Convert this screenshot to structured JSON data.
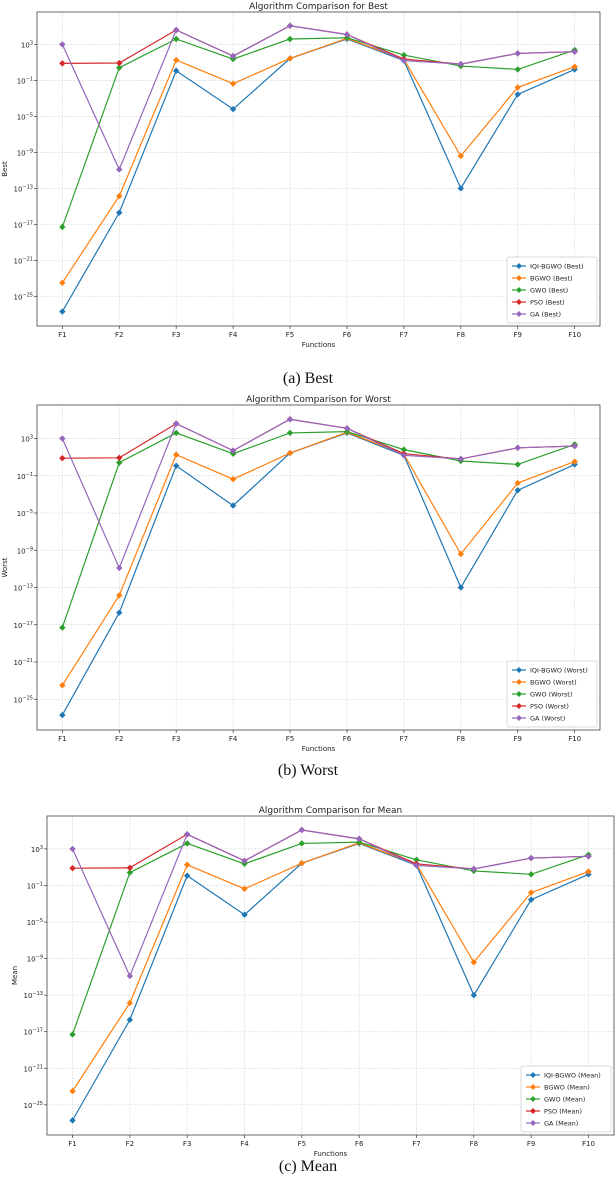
{
  "chart_data": [
    {
      "type": "line",
      "title": "Algorithm Comparison for Best",
      "caption": "(a)  Best",
      "xlabel": "Functions",
      "ylabel": "Best",
      "yscale": "log",
      "value_format": "log10",
      "categories": [
        "F1",
        "F2",
        "F3",
        "F4",
        "F5",
        "F6",
        "F7",
        "F8",
        "F9",
        "F10"
      ],
      "yticks": [
        "10^3",
        "10^-1",
        "10^-5",
        "10^-9",
        "10^-13",
        "10^-17",
        "10^-21",
        "10^-25"
      ],
      "ylim_log10": [
        -28.3,
        6.6
      ],
      "grid": true,
      "legend": "bottom-right",
      "series": [
        {
          "name": "IQI-BGWO (Best)",
          "color": "#1f77b4",
          "values": [
            -26.7,
            -15.7,
            0.07,
            -4.2,
            1.44,
            3.6,
            1.2,
            -13,
            -2.56,
            0.22
          ]
        },
        {
          "name": "BGWO (Best)",
          "color": "#ff7f0e",
          "values": [
            -23.5,
            -13.85,
            1.26,
            -1.37,
            1.44,
            3.67,
            1.33,
            -9.4,
            -1.78,
            0.52
          ]
        },
        {
          "name": "GWO (Best)",
          "color": "#2ca02c",
          "values": [
            -17.3,
            0.41,
            3.6,
            1.37,
            3.6,
            3.74,
            1.81,
            0.59,
            0.22,
            2.37
          ]
        },
        {
          "name": "PSO (Best)",
          "color": "#d62728",
          "values": [
            0.89,
            0.93,
            4.6,
            1.7,
            5.07,
            4.1,
            1.37,
            0.81,
            2.0,
            2.19
          ]
        },
        {
          "name": "GA (Best)",
          "color": "#9467bd",
          "values": [
            3.0,
            -10.9,
            4.6,
            1.7,
            5.07,
            4.1,
            1.2,
            0.81,
            2.0,
            2.19
          ]
        }
      ]
    },
    {
      "type": "line",
      "title": "Algorithm Comparison for Worst",
      "caption": "(b)  Worst",
      "xlabel": "Functions",
      "ylabel": "Worst",
      "yscale": "log",
      "value_format": "log10",
      "categories": [
        "F1",
        "F2",
        "F3",
        "F4",
        "F5",
        "F6",
        "F7",
        "F8",
        "F9",
        "F10"
      ],
      "yticks": [
        "10^3",
        "10^-1",
        "10^-5",
        "10^-9",
        "10^-13",
        "10^-17",
        "10^-21",
        "10^-25"
      ],
      "ylim_log10": [
        -28.3,
        6.6
      ],
      "grid": true,
      "legend": "bottom-right",
      "series": [
        {
          "name": "IQI-BGWO (Worst)",
          "color": "#1f77b4",
          "values": [
            -26.7,
            -15.7,
            0.07,
            -4.2,
            1.44,
            3.6,
            1.2,
            -13,
            -2.56,
            0.22
          ]
        },
        {
          "name": "BGWO (Worst)",
          "color": "#ff7f0e",
          "values": [
            -23.5,
            -13.85,
            1.26,
            -1.37,
            1.44,
            3.67,
            1.33,
            -9.4,
            -1.78,
            0.52
          ]
        },
        {
          "name": "GWO (Worst)",
          "color": "#2ca02c",
          "values": [
            -17.3,
            0.41,
            3.6,
            1.37,
            3.6,
            3.74,
            1.81,
            0.59,
            0.22,
            2.37
          ]
        },
        {
          "name": "PSO (Worst)",
          "color": "#d62728",
          "values": [
            0.89,
            0.93,
            4.6,
            1.7,
            5.07,
            4.1,
            1.37,
            0.81,
            2.0,
            2.19
          ]
        },
        {
          "name": "GA (Worst)",
          "color": "#9467bd",
          "values": [
            3.0,
            -10.9,
            4.6,
            1.7,
            5.07,
            4.1,
            1.2,
            0.81,
            2.0,
            2.19
          ]
        }
      ]
    },
    {
      "type": "line",
      "title": "Algorithm Comparison for Mean",
      "caption": "(c)  Mean",
      "xlabel": "Functions",
      "ylabel": "Mean",
      "yscale": "log",
      "value_format": "log10",
      "categories": [
        "F1",
        "F2",
        "F3",
        "F4",
        "F5",
        "F6",
        "F7",
        "F8",
        "F9",
        "F10"
      ],
      "yticks": [
        "10^3",
        "10^-1",
        "10^-5",
        "10^-9",
        "10^-13",
        "10^-17",
        "10^-21",
        "10^-25"
      ],
      "ylim_log10": [
        -28.3,
        6.6
      ],
      "grid": true,
      "legend": "bottom-right",
      "series": [
        {
          "name": "IQI-BGWO (Mean)",
          "color": "#1f77b4",
          "values": [
            -26.7,
            -15.7,
            0.07,
            -4.2,
            1.44,
            3.6,
            1.2,
            -13,
            -2.56,
            0.22
          ]
        },
        {
          "name": "BGWO (Mean)",
          "color": "#ff7f0e",
          "values": [
            -23.5,
            -13.85,
            1.26,
            -1.37,
            1.44,
            3.67,
            1.33,
            -9.4,
            -1.78,
            0.52
          ]
        },
        {
          "name": "GWO (Mean)",
          "color": "#2ca02c",
          "values": [
            -17.3,
            0.41,
            3.6,
            1.37,
            3.6,
            3.74,
            1.81,
            0.59,
            0.22,
            2.37
          ]
        },
        {
          "name": "PSO (Mean)",
          "color": "#d62728",
          "values": [
            0.89,
            0.93,
            4.6,
            1.7,
            5.07,
            4.1,
            1.37,
            0.81,
            2.0,
            2.19
          ]
        },
        {
          "name": "GA (Mean)",
          "color": "#9467bd",
          "values": [
            3.0,
            -10.9,
            4.6,
            1.7,
            5.07,
            4.1,
            1.2,
            0.81,
            2.0,
            2.19
          ]
        }
      ]
    }
  ]
}
